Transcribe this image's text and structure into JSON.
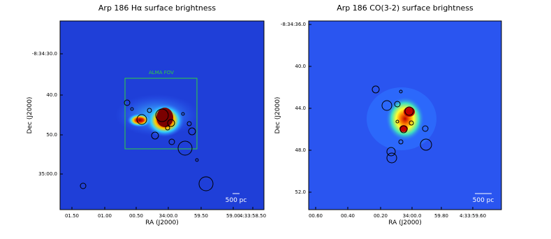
{
  "panels": [
    {
      "title": "Arp 186 Hα surface brightness",
      "xlabel": "RA (J2000)",
      "ylabel": "Dec (J2000)",
      "xticks": [
        "01.50",
        "01.00",
        "00.50",
        "34:00.0",
        "59.50",
        "59.00",
        "4:33:58.50"
      ],
      "yticks": [
        "-8:34:30.0",
        "40.0",
        "50.0",
        "35:00.0"
      ],
      "annotation": "ALMA FOV",
      "scalebar": "500 pc"
    },
    {
      "title": "Arp 186 CO(3-2) surface brightness",
      "xlabel": "RA (J2000)",
      "ylabel": "Dec (J2000)",
      "xticks": [
        "00.60",
        "00.40",
        "00.20",
        "34:00.0",
        "59.80",
        "4:33:59.60"
      ],
      "yticks": [
        "-8:34:36.0",
        "40.0",
        "44.0",
        "48.0",
        "52.0"
      ],
      "scalebar": "500 pc"
    }
  ]
}
